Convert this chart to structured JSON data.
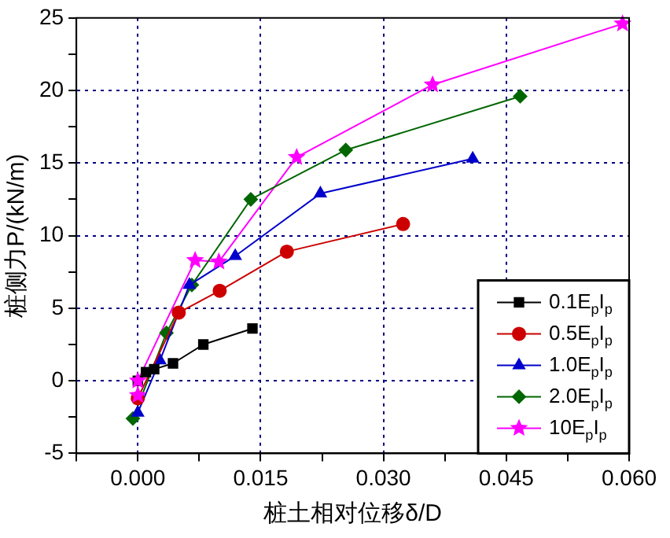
{
  "chart_data": {
    "type": "line",
    "xlabel": "桩土相对位移δ/D",
    "ylabel": "桩侧力P/(kN/m)",
    "xlim": [
      -0.0075,
      0.06
    ],
    "xticks": [
      {
        "value": -0.0075,
        "label": null
      },
      "0.000",
      {
        "value": 0.0075,
        "label": null
      },
      {
        "value": 0.015,
        "label": "0.015"
      },
      {
        "value": 0.0225,
        "label": null
      },
      {
        "value": 0.03,
        "label": "0.030"
      },
      {
        "value": 0.0375,
        "label": null
      },
      {
        "value": 0.045,
        "label": "0.045"
      },
      {
        "value": 0.0525,
        "label": null
      },
      {
        "value": 0.06,
        "label": "0.060"
      }
    ],
    "ylim": [
      -5,
      25
    ],
    "yticks": [
      -5,
      {
        "value": -2.5,
        "label": null
      },
      0,
      {
        "value": 2.5,
        "label": null
      },
      5,
      {
        "value": 7.5,
        "label": null
      },
      10,
      {
        "value": 12.5,
        "label": null
      },
      15,
      {
        "value": 17.5,
        "label": null
      },
      20,
      {
        "value": 22.5,
        "label": null
      },
      25
    ],
    "grid": true,
    "legend": "bottom right",
    "series": [
      {
        "name": "0.1E$_{p}$I$_{p}$",
        "color": "#000000",
        "marker": "square",
        "x": [
          0,
          0.001,
          0.002,
          0.0043,
          0.008,
          0.014
        ],
        "values": [
          0,
          0.6,
          0.8,
          1.2,
          2.5,
          3.6
        ]
      },
      {
        "name": "0.5E$_{p}$I$_{p}$",
        "color": "#cc0000",
        "marker": "circle",
        "x": [
          0,
          0.005,
          0.01,
          0.0182,
          0.0324
        ],
        "values": [
          -1.2,
          4.7,
          6.2,
          8.9,
          10.8
        ]
      },
      {
        "name": "1.0E$_{p}$I$_{p}$",
        "color": "#0000cc",
        "marker": "triangle",
        "x": [
          0,
          0.0027,
          0.0063,
          0.0119,
          0.0223,
          0.0409
        ],
        "values": [
          -2.2,
          1.4,
          6.6,
          8.6,
          12.9,
          15.3
        ]
      },
      {
        "name": "2.0E$_{p}$I$_{p}$",
        "color": "#006600",
        "marker": "diamond",
        "x": [
          -0.0006,
          0.0035,
          0.0066,
          0.0138,
          0.0254,
          0.0467
        ],
        "values": [
          -2.6,
          3.3,
          6.6,
          12.5,
          15.9,
          19.6
        ]
      },
      {
        "name": "10E$_{p}$I$_{p}$",
        "color": "#ff00ff",
        "marker": "star",
        "x": [
          0,
          0,
          0.007,
          0.0099,
          0.0194,
          0.036,
          0.0592
        ],
        "values": [
          -1,
          0,
          8.3,
          8.2,
          15.4,
          20.4,
          24.6
        ]
      }
    ]
  }
}
